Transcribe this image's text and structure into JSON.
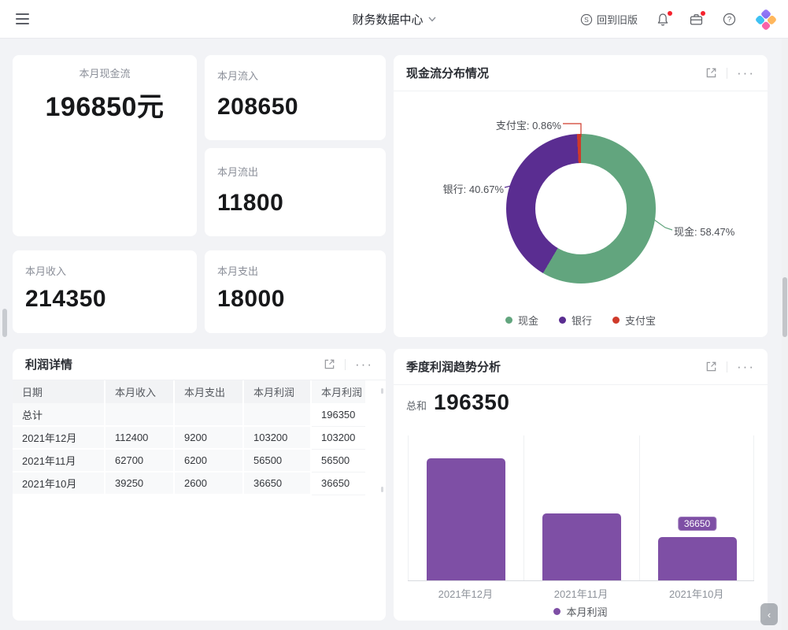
{
  "header": {
    "title": "财务数据中心",
    "back_label": "回到旧版"
  },
  "icons": {
    "more": "···",
    "collapse": "‹",
    "help_glyph": "?",
    "history_glyph": "S"
  },
  "stats": [
    {
      "label": "本月现金流",
      "value": "196850元"
    },
    {
      "label": "本月流入",
      "value": "208650"
    },
    {
      "label": "本月流出",
      "value": "11800"
    },
    {
      "label": "本月收入",
      "value": "214350"
    },
    {
      "label": "本月支出",
      "value": "18000"
    }
  ],
  "donut_card": {
    "title": "现金流分布情况"
  },
  "table_card": {
    "title": "利润详情",
    "columns": [
      "日期",
      "本月收入",
      "本月支出",
      "本月利润",
      "本月利润"
    ],
    "rows": [
      [
        "总计",
        "",
        "",
        "",
        "196350"
      ],
      [
        "2021年12月",
        "112400",
        "9200",
        "103200",
        "103200"
      ],
      [
        "2021年11月",
        "62700",
        "6200",
        "56500",
        "56500"
      ],
      [
        "2021年10月",
        "39250",
        "2600",
        "36650",
        "36650"
      ]
    ]
  },
  "trend_card": {
    "title": "季度利润趋势分析",
    "sum_label": "总和",
    "sum_value": "196350"
  },
  "chart_data": [
    {
      "type": "pie",
      "donut": true,
      "title": "现金流分布情况",
      "labels": [
        "现金",
        "银行",
        "支付宝"
      ],
      "values": [
        58.47,
        40.67,
        0.86
      ],
      "unit": "%",
      "colors": [
        "#62a57e",
        "#5a2d91",
        "#cf3a2a"
      ],
      "legend_position": "bottom",
      "start_angle": "top-clockwise"
    },
    {
      "type": "bar",
      "title": "季度利润趋势分析",
      "series_name": "本月利润",
      "categories": [
        "2021年12月",
        "2021年11月",
        "2021年10月"
      ],
      "values": [
        103200,
        56500,
        36650
      ],
      "sum": 196350,
      "bar_color": "#7e4fa5",
      "data_label": {
        "index": 2,
        "value": "36650"
      },
      "ylim": [
        0,
        110000
      ],
      "grid": "vertical-category-separators",
      "legend_position": "bottom"
    }
  ]
}
